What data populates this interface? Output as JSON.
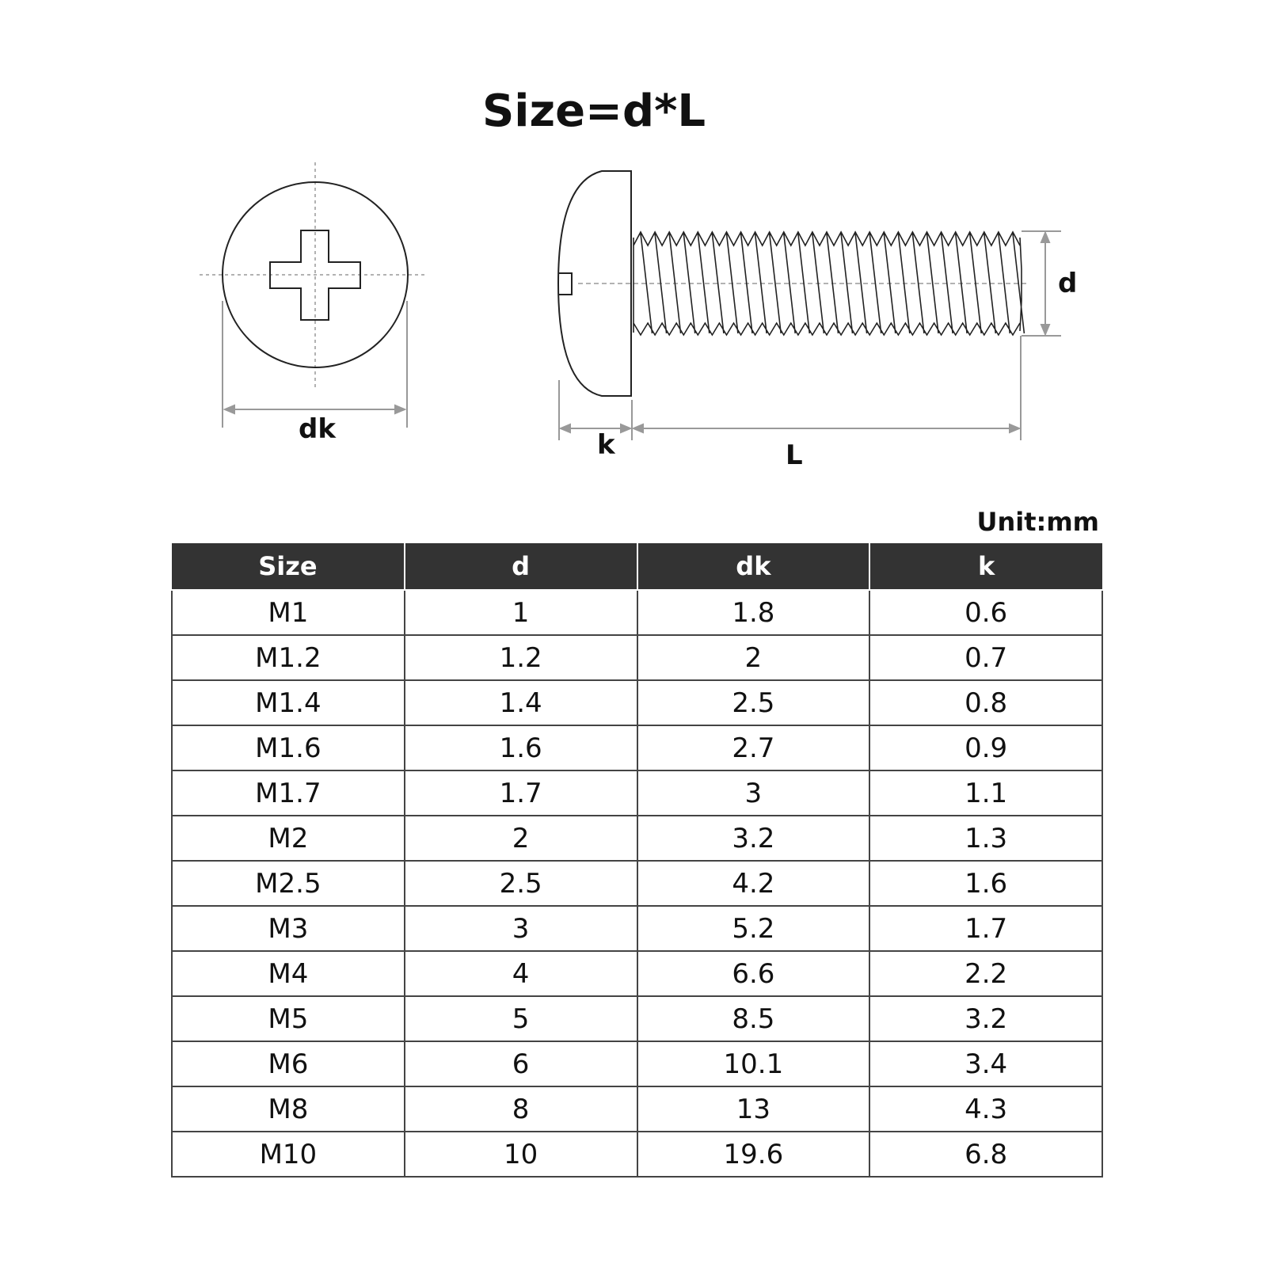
{
  "title": "Size=d*L",
  "diagram": {
    "labels": {
      "dk": "dk",
      "k": "k",
      "L": "L",
      "d": "d"
    },
    "line_color": "#222222",
    "dimension_color": "#999999"
  },
  "unit": "Unit:mm",
  "table": {
    "header_bg": "#333333",
    "columns": [
      "Size",
      "d",
      "dk",
      "k"
    ],
    "rows": [
      [
        "M1",
        "1",
        "1.8",
        "0.6"
      ],
      [
        "M1.2",
        "1.2",
        "2",
        "0.7"
      ],
      [
        "M1.4",
        "1.4",
        "2.5",
        "0.8"
      ],
      [
        "M1.6",
        "1.6",
        "2.7",
        "0.9"
      ],
      [
        "M1.7",
        "1.7",
        "3",
        "1.1"
      ],
      [
        "M2",
        "2",
        "3.2",
        "1.3"
      ],
      [
        "M2.5",
        "2.5",
        "4.2",
        "1.6"
      ],
      [
        "M3",
        "3",
        "5.2",
        "1.7"
      ],
      [
        "M4",
        "4",
        "6.6",
        "2.2"
      ],
      [
        "M5",
        "5",
        "8.5",
        "3.2"
      ],
      [
        "M6",
        "6",
        "10.1",
        "3.4"
      ],
      [
        "M8",
        "8",
        "13",
        "4.3"
      ],
      [
        "M10",
        "10",
        "19.6",
        "6.8"
      ]
    ]
  }
}
